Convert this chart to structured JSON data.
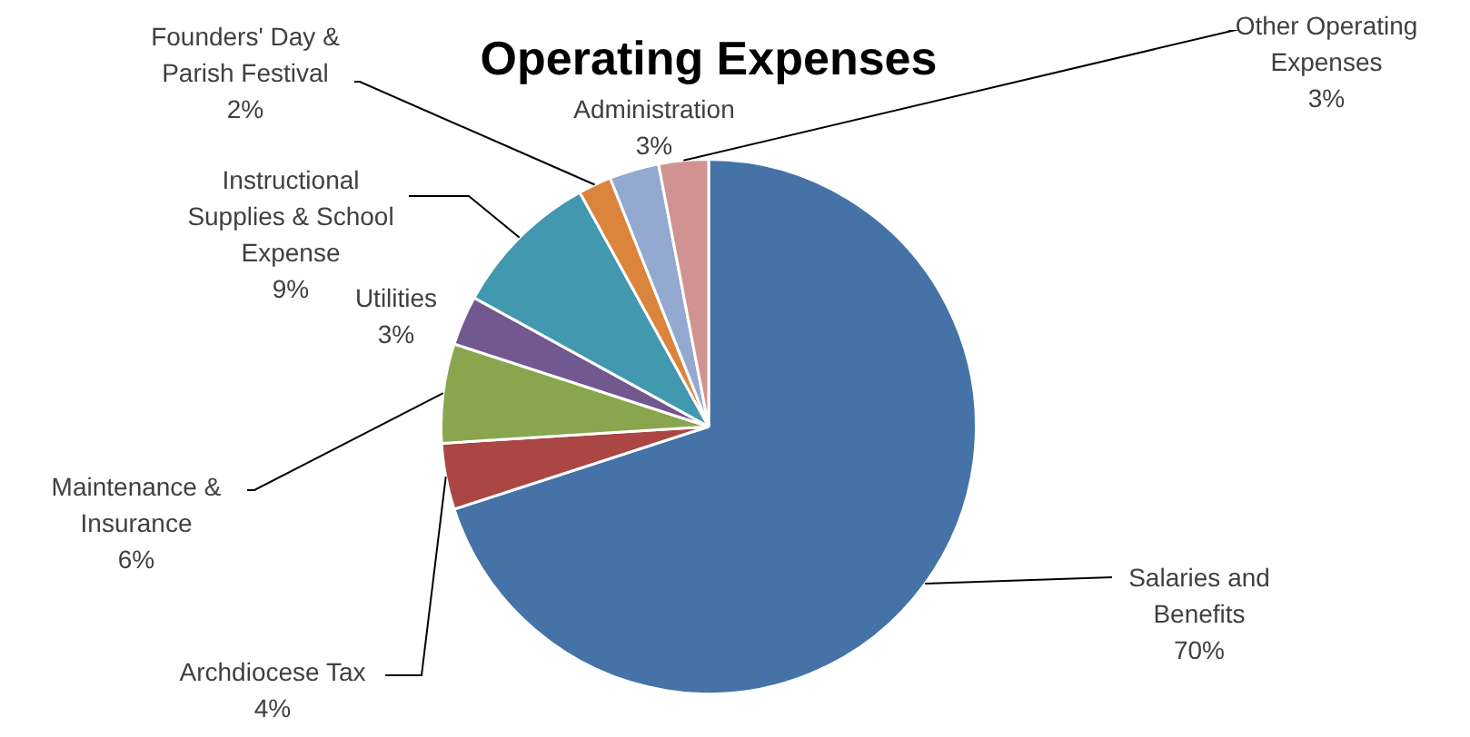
{
  "chart_data": {
    "type": "pie",
    "title": "Operating Expenses",
    "categories": [
      "Salaries and Benefits",
      "Archdiocese Tax",
      "Maintenance & Insurance",
      "Utilities",
      "Instructional Supplies & School Expense",
      "Founders' Day & Parish Festival",
      "Administration",
      "Other Operating Expenses"
    ],
    "values": [
      70,
      4,
      6,
      3,
      9,
      2,
      3,
      3
    ],
    "value_labels": [
      "70%",
      "4%",
      "6%",
      "3%",
      "9%",
      "2%",
      "3%",
      "3%"
    ],
    "colors": [
      "#4572a7",
      "#aa4643",
      "#89a54e",
      "#71588f",
      "#4198af",
      "#db843d",
      "#93a9cf",
      "#d19392"
    ],
    "legend": false
  }
}
